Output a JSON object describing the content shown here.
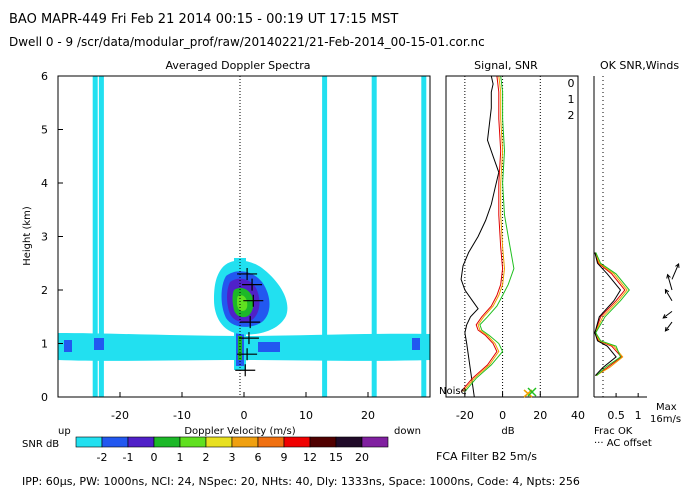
{
  "header": {
    "line1": "BAO  MAPR-449  Fri Feb 21 2014 00:15 - 00:19 UT 17:15 MST",
    "line2": "Dwell  0 - 9   /scr/data/modular_prof/raw/20140221/21-Feb-2014_00-15-01.cor.nc"
  },
  "footer": {
    "params": "IPP: 60µs, PW: 1000ns, NCI: 24, NSpec: 20, NHts: 40, Dly: 1333ns, Space: 1000ns, Code: 4, Npts: 256",
    "filter": "FCA Filter B2  5m/s"
  },
  "colors": {
    "noise_fill": "#22e0f0",
    "axis": "#000000"
  },
  "chart_data": [
    {
      "type": "heatmap",
      "title": "Averaged Doppler Spectra",
      "xlabel": "Doppler Velocity (m/s)",
      "ylabel": "Height (km)",
      "xlim": [
        -30,
        30
      ],
      "ylim": [
        0,
        6
      ],
      "x_ticks": [
        -20,
        -10,
        0,
        10,
        20
      ],
      "y_ticks": [
        0,
        1,
        2,
        3,
        4,
        5,
        6
      ],
      "x_side_labels": {
        "left": "up",
        "right": "down"
      },
      "clutter_spikes_mps": [
        -24,
        -23,
        13,
        21,
        29
      ],
      "colorbar": {
        "label": "SNR dB",
        "ticks": [
          "-2",
          "-1",
          "0",
          "1",
          "2",
          "3",
          "6",
          "9",
          "12",
          "15",
          "20"
        ],
        "colors": [
          "#22e0f0",
          "#2258f0",
          "#5020c8",
          "#1cb828",
          "#60e020",
          "#e8e020",
          "#f0a010",
          "#f07010",
          "#f00000",
          "#500000",
          "#200a28",
          "#8020a0"
        ]
      },
      "peaks": [
        {
          "height_km": 0.5,
          "velocity_mps": 0.2
        },
        {
          "height_km": 0.8,
          "velocity_mps": 0.5
        },
        {
          "height_km": 1.1,
          "velocity_mps": 0.8
        },
        {
          "height_km": 1.4,
          "velocity_mps": 1.0
        },
        {
          "height_km": 1.8,
          "velocity_mps": 1.5
        },
        {
          "height_km": 2.1,
          "velocity_mps": 1.3
        },
        {
          "height_km": 2.3,
          "velocity_mps": 0.5
        }
      ]
    },
    {
      "type": "line",
      "title": "Signal, SNR",
      "xlabel": "dB",
      "xlim": [
        -30,
        40
      ],
      "ylim": [
        0,
        6
      ],
      "x_ticks": [
        -20,
        0,
        20,
        40
      ],
      "annotation": "Noise",
      "legend": [
        "0",
        "1",
        "2"
      ],
      "series": [
        {
          "name": "Signal",
          "color": "#000000",
          "x": [
            -15,
            -16,
            -17,
            -18,
            -19,
            -20,
            -19,
            -17,
            -13,
            -16,
            -20,
            -22,
            -21,
            -18,
            -13,
            -9,
            -6,
            -4,
            -2,
            -5,
            -8,
            -7,
            -6,
            -6,
            -5,
            -6
          ],
          "y": [
            0.0,
            0.25,
            0.5,
            0.75,
            1.0,
            1.2,
            1.35,
            1.5,
            1.65,
            1.8,
            2.0,
            2.2,
            2.45,
            2.7,
            3.0,
            3.3,
            3.6,
            3.9,
            4.2,
            4.5,
            4.8,
            5.1,
            5.4,
            5.7,
            5.85,
            6.0
          ]
        },
        {
          "name": "0",
          "color": "#e00000",
          "x": [
            -22,
            -16,
            -8,
            -3,
            -5,
            -9,
            -13,
            -14,
            -11,
            -6,
            -3,
            -1,
            0,
            -1,
            -2,
            -2,
            -1,
            -2,
            -2,
            -3
          ],
          "y": [
            0.1,
            0.35,
            0.6,
            0.85,
            1.0,
            1.15,
            1.25,
            1.35,
            1.5,
            1.7,
            1.9,
            2.1,
            2.4,
            2.8,
            3.4,
            4.0,
            4.6,
            5.2,
            5.7,
            6.0
          ]
        },
        {
          "name": "1",
          "color": "#f0a000",
          "x": [
            -21,
            -15,
            -7,
            -2,
            -4,
            -8,
            -12,
            -13,
            -10,
            -5,
            -2,
            0,
            1,
            0,
            -1,
            -1,
            0,
            -1,
            -1,
            -2
          ],
          "y": [
            0.1,
            0.35,
            0.6,
            0.85,
            1.0,
            1.15,
            1.25,
            1.35,
            1.5,
            1.7,
            1.9,
            2.1,
            2.4,
            2.8,
            3.4,
            4.0,
            4.6,
            5.2,
            5.7,
            6.0
          ]
        },
        {
          "name": "2",
          "color": "#20c020",
          "x": [
            -20,
            -14,
            -6,
            0,
            -2,
            -7,
            -11,
            -12,
            -8,
            -3,
            0,
            3,
            6,
            4,
            1,
            0,
            1,
            0,
            0,
            -1
          ],
          "y": [
            0.1,
            0.35,
            0.6,
            0.85,
            1.0,
            1.15,
            1.25,
            1.35,
            1.5,
            1.7,
            1.9,
            2.1,
            2.4,
            2.8,
            3.4,
            4.0,
            4.6,
            5.2,
            5.7,
            6.0
          ]
        }
      ]
    },
    {
      "type": "line",
      "title": "OK SNR,Winds",
      "xlabel": "Frac OK",
      "xlim": [
        0,
        1.2
      ],
      "ylim": [
        0,
        6
      ],
      "x_ticks": [
        "0.5",
        "1"
      ],
      "notes": [
        "··· AC offset"
      ],
      "wind_label": [
        "Max",
        "16m/s"
      ],
      "series": [
        {
          "name": "0",
          "color": "#e00000",
          "x": [
            0.05,
            0.3,
            0.62,
            0.4,
            0.1,
            0.02,
            0.15,
            0.5,
            0.7,
            0.4,
            0.1,
            0.02
          ],
          "y": [
            0.4,
            0.55,
            0.75,
            0.95,
            1.05,
            1.2,
            1.5,
            1.8,
            2.0,
            2.3,
            2.5,
            2.7
          ]
        },
        {
          "name": "1",
          "color": "#f0a000",
          "x": [
            0.04,
            0.35,
            0.65,
            0.45,
            0.12,
            0.03,
            0.2,
            0.55,
            0.75,
            0.45,
            0.12,
            0.03
          ],
          "y": [
            0.4,
            0.55,
            0.75,
            0.95,
            1.05,
            1.2,
            1.5,
            1.8,
            2.0,
            2.3,
            2.5,
            2.7
          ]
        },
        {
          "name": "2",
          "color": "#20c020",
          "x": [
            0.06,
            0.25,
            0.6,
            0.5,
            0.15,
            0.04,
            0.25,
            0.6,
            0.8,
            0.5,
            0.15,
            0.04
          ],
          "y": [
            0.4,
            0.55,
            0.75,
            0.95,
            1.05,
            1.2,
            1.5,
            1.8,
            2.0,
            2.3,
            2.5,
            2.7
          ]
        },
        {
          "name": "OK",
          "color": "#000000",
          "x": [
            0.03,
            0.2,
            0.5,
            0.3,
            0.08,
            0.02,
            0.12,
            0.45,
            0.6,
            0.3,
            0.08,
            0.02
          ],
          "y": [
            0.4,
            0.55,
            0.75,
            0.95,
            1.05,
            1.2,
            1.5,
            1.8,
            2.0,
            2.3,
            2.5,
            2.7
          ]
        }
      ],
      "winds": [
        {
          "height_km": 1.4,
          "u_mps": -3,
          "v_mps": -4
        },
        {
          "height_km": 1.6,
          "u_mps": -4,
          "v_mps": -3
        },
        {
          "height_km": 1.8,
          "u_mps": -3,
          "v_mps": 5
        },
        {
          "height_km": 2.0,
          "u_mps": -2,
          "v_mps": 7
        },
        {
          "height_km": 2.2,
          "u_mps": 3,
          "v_mps": 7
        }
      ]
    }
  ]
}
